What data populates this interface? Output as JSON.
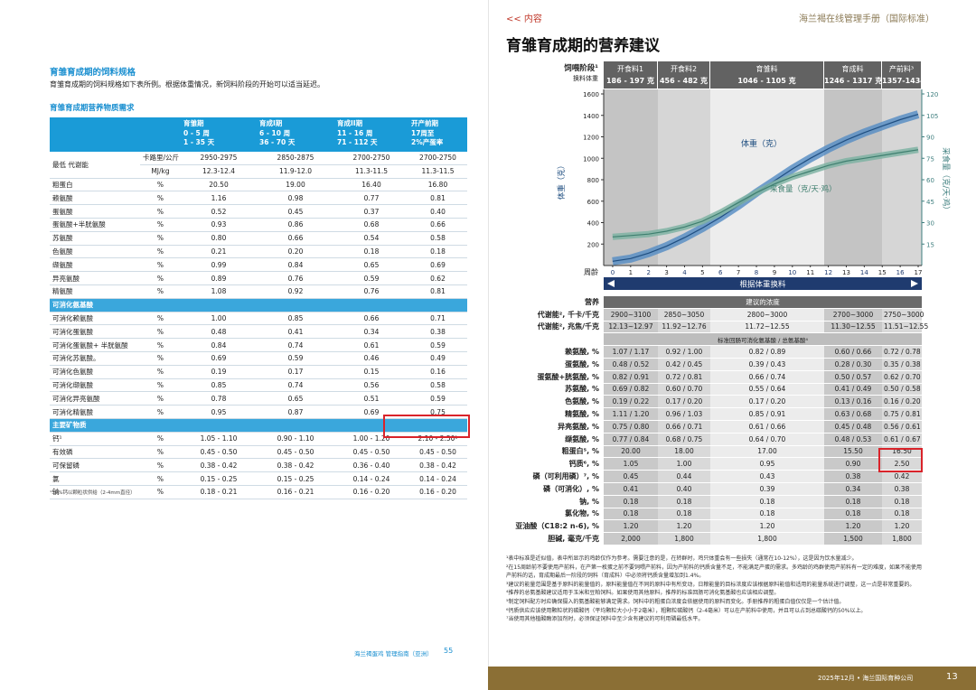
{
  "left": {
    "heading": "育雏育成期的饲料规格",
    "intro": "育雏育成期的饲料规格如下表所例。根据体重情况，新饲料阶段的开始可以适当延迟。",
    "table_title": "育雏育成期营养物质需求",
    "table": {
      "columns": [
        [
          "育雏期",
          "0 - 5 周",
          "1 - 35 天"
        ],
        [
          "育成I期",
          "6 - 10 周",
          "36 - 70 天"
        ],
        [
          "育成II期",
          "11 - 16 周",
          "71 - 112 天"
        ],
        [
          "开产前期",
          "17周至",
          "2%产蛋率"
        ]
      ],
      "rows": [
        {
          "label": "最低 代谢能",
          "lines": [
            [
              "卡路里/公斤",
              "2950-2975",
              "2850-2875",
              "2700-2750",
              "2700-2750"
            ],
            [
              "MJ/kg",
              "12.3-12.4",
              "11.9-12.0",
              "11.3-11.5",
              "11.3-11.5"
            ]
          ]
        },
        [
          "粗蛋白",
          "%",
          "20.50",
          "19.00",
          "16.40",
          "16.80"
        ],
        [
          "赖氨酸",
          "%",
          "1.16",
          "0.98",
          "0.77",
          "0.81"
        ],
        [
          "蛋氨酸",
          "%",
          "0.52",
          "0.45",
          "0.37",
          "0.40"
        ],
        [
          "蛋氨酸+半胱氨酸",
          "%",
          "0.93",
          "0.86",
          "0.68",
          "0.66"
        ],
        [
          "苏氨酸",
          "%",
          "0.80",
          "0.66",
          "0.54",
          "0.58"
        ],
        [
          "色氨酸",
          "%",
          "0.21",
          "0.20",
          "0.18",
          "0.18"
        ],
        [
          "缬氨酸",
          "%",
          "0.99",
          "0.84",
          "0.65",
          "0.69"
        ],
        [
          "异亮氨酸",
          "%",
          "0.89",
          "0.76",
          "0.59",
          "0.62"
        ],
        [
          "精氨酸",
          "%",
          "1.08",
          "0.92",
          "0.76",
          "0.81"
        ],
        {
          "section": "可消化氨基酸"
        },
        [
          "可消化赖氨酸",
          "%",
          "1.00",
          "0.85",
          "0.66",
          "0.71"
        ],
        [
          "可消化蛋氨酸",
          "%",
          "0.48",
          "0.41",
          "0.34",
          "0.38"
        ],
        [
          "可消化蛋氨酸+ 半胱氨酸",
          "%",
          "0.84",
          "0.74",
          "0.61",
          "0.59"
        ],
        [
          "可消化苏氨酸。",
          "%",
          "0.69",
          "0.59",
          "0.46",
          "0.49"
        ],
        [
          "可消化色氨酸",
          "%",
          "0.19",
          "0.17",
          "0.15",
          "0.16"
        ],
        [
          "可消化缬氨酸",
          "%",
          "0.85",
          "0.74",
          "0.56",
          "0.58"
        ],
        [
          "可消化异亮氨酸",
          "%",
          "0.78",
          "0.65",
          "0.51",
          "0.59"
        ],
        [
          "可消化精氨酸",
          "%",
          "0.95",
          "0.87",
          "0.69",
          "0.75"
        ],
        {
          "section": "主要矿物质"
        },
        [
          "钙¹",
          "%",
          "1.05 - 1.10",
          "0.90 - 1.10",
          "1.00 - 1.20",
          "2.10 - 2.50¹"
        ],
        [
          "有效磷",
          "%",
          "0.45 - 0.50",
          "0.45 - 0.50",
          "0.45 - 0.50",
          "0.45 - 0.50"
        ],
        [
          "可保留磷",
          "%",
          "0.38 - 0.42",
          "0.38 - 0.42",
          "0.36 - 0.40",
          "0.38 - 0.42"
        ],
        [
          "氯",
          "%",
          "0.15 - 0.25",
          "0.15 - 0.25",
          "0.14 - 0.24",
          "0.14 - 0.24"
        ],
        [
          "钠",
          "%",
          "0.18 - 0.21",
          "0.16 - 0.21",
          "0.16 - 0.20",
          "0.16 - 0.20"
        ]
      ]
    },
    "footnote": "¹50%钙以颗粒状供给（2-4mm直径）",
    "footer": {
      "text": "海兰褐蛋鸡 管理指南（亚洲）",
      "page": "55"
    }
  },
  "right": {
    "nav": "<< 内容",
    "running_head": "海兰褐在线管理手册（国际标准）",
    "title": "育雏育成期的营养建议",
    "stage_label": "饲喂阶段¹",
    "change_label": "换料体重",
    "stages": [
      {
        "name": "开食料1",
        "weight": "186 - 197 克"
      },
      {
        "name": "开食料2",
        "weight": "456 - 482 克"
      },
      {
        "name": "育雏料",
        "weight": "1046 - 1105 克"
      },
      {
        "name": "育成料",
        "weight": "1246 - 1317 克"
      },
      {
        "name": "产前料³",
        "weight": "1357-1434 克"
      }
    ],
    "chart": {
      "type": "line",
      "xlabel": "周龄",
      "banner": "根据体重换料",
      "ylabel": "体重（克）",
      "y2label": "采食量（克/天·鸡）",
      "x": [
        0,
        1,
        2,
        3,
        4,
        5,
        6,
        7,
        8,
        9,
        10,
        11,
        12,
        13,
        14,
        15,
        16,
        17
      ],
      "xlim": [
        -0.5,
        17.2
      ],
      "xticks": [
        0,
        1,
        2,
        3,
        4,
        5,
        6,
        7,
        8,
        9,
        10,
        11,
        12,
        13,
        14,
        15,
        16,
        17
      ],
      "ylim": [
        0,
        1600
      ],
      "yticks": [
        200,
        400,
        600,
        800,
        1000,
        1200,
        1400,
        1600
      ],
      "y2lim": [
        0,
        120
      ],
      "y2ticks": [
        15,
        30,
        45,
        60,
        75,
        90,
        105,
        120
      ],
      "series": [
        {
          "name": "体重（克）",
          "color": "#1f4e80",
          "values": [
            40,
            65,
            115,
            180,
            260,
            350,
            450,
            560,
            680,
            790,
            900,
            1000,
            1090,
            1170,
            1240,
            1300,
            1360,
            1410
          ]
        },
        {
          "name": "采食量（克/天·鸡）",
          "color": "#3f7f6f",
          "axis": "y2",
          "values": [
            20,
            21,
            22,
            24,
            27,
            31,
            37,
            44,
            51,
            57,
            62,
            66,
            70,
            73,
            75,
            77,
            79,
            81
          ]
        }
      ]
    },
    "table": {
      "header": [
        "营养",
        "建议的浓度"
      ],
      "rows": [
        [
          "代谢能², 千卡/千克",
          "2900~3100",
          "2850~3050",
          "2800~3000",
          "2700~3000",
          "2750~3000"
        ],
        [
          "代谢能², 兆焦/千克",
          "12.13~12.97",
          "11.92~12.76",
          "11.72~12.55",
          "11.30~12.55",
          "11.51~12.55"
        ],
        {
          "section": "标准回肠可消化氨基酸 / 总氨基酸⁴"
        },
        [
          "赖氨酸, %",
          "1.07 / 1.17",
          "0.92 / 1.00",
          "0.82 / 0.89",
          "0.60 / 0.66",
          "0.72 / 0.78"
        ],
        [
          "蛋氨酸, %",
          "0.48 / 0.52",
          "0.42 / 0.45",
          "0.39 / 0.43",
          "0.28 / 0.30",
          "0.35 / 0.38"
        ],
        [
          "蛋氨酸+胱氨酸, %",
          "0.82 / 0.91",
          "0.72 / 0.81",
          "0.66 / 0.74",
          "0.50 / 0.57",
          "0.62 / 0.70"
        ],
        [
          "苏氨酸, %",
          "0.69 / 0.82",
          "0.60 / 0.70",
          "0.55 / 0.64",
          "0.41 / 0.49",
          "0.50 / 0.58"
        ],
        [
          "色氨酸, %",
          "0.19 / 0.22",
          "0.17 / 0.20",
          "0.17 / 0.20",
          "0.13 / 0.16",
          "0.16 / 0.20"
        ],
        [
          "精氨酸, %",
          "1.11 / 1.20",
          "0.96 / 1.03",
          "0.85 / 0.91",
          "0.63 / 0.68",
          "0.75 / 0.81"
        ],
        [
          "异亮氨酸, %",
          "0.75 / 0.80",
          "0.66 / 0.71",
          "0.61 / 0.66",
          "0.45 / 0.48",
          "0.56 / 0.61"
        ],
        [
          "缬氨酸, %",
          "0.77 / 0.84",
          "0.68 / 0.75",
          "0.64 / 0.70",
          "0.48 / 0.53",
          "0.61 / 0.67"
        ],
        [
          "粗蛋白⁵, %",
          "20.00",
          "18.00",
          "17.00",
          "15.50",
          "16.50"
        ],
        [
          "钙质⁶, %",
          "1.05",
          "1.00",
          "0.95",
          "0.90",
          "2.50"
        ],
        [
          "磷（可利用磷）⁷, %",
          "0.45",
          "0.44",
          "0.43",
          "0.38",
          "0.42"
        ],
        [
          "磷（可消化）, %",
          "0.41",
          "0.40",
          "0.39",
          "0.34",
          "0.38"
        ],
        [
          "钠, %",
          "0.18",
          "0.18",
          "0.18",
          "0.18",
          "0.18"
        ],
        [
          "氯化物, %",
          "0.18",
          "0.18",
          "0.18",
          "0.18",
          "0.18"
        ],
        [
          "亚油酸（C18:2 n-6), %",
          "1.20",
          "1.20",
          "1.20",
          "1.20",
          "1.20"
        ],
        [
          "胆碱, 毫克/千克",
          "2,000",
          "1,800",
          "1,800",
          "1,500",
          "1,800"
        ]
      ]
    },
    "footnotes": [
      "¹表中标准是近似值，表中所显示的鸡龄仅作为参考。需要注意的是，在转群时，鸡只体重会有一些损失（通常在10-12%），这是因为饮水量减少。",
      "²在15周龄前不要使用产前料，在产第一枚蛋之前不要饲喂产前料，因为产前料的钙质含量不足，不能满足产蛋的需求。多鸡龄的鸡群使用产前料有一定的难度，如果不能使用产前料的话，育成期最后一阶段的饲料（育成料）中必须将钙质含量增加到1.4%。",
      "³建议的能量范围是基于原料的能量值的，原料能量值在不同的原料中有所变动，日粮能量的目标浓度应该根据原料能值和适用的能量系统进行调整，这一点是非常重要的。",
      "⁴推荐的总氨基酸建议适用于玉米和豆粕饲料。如果使用其他原料，推荐的标准回肠可消化氨基酸也应该相应调整。",
      "⁵制定饲料配方时应确保摄入的氨基酸能够满足需求。饲料中的粗蛋白浓度会依据使用的原料而变化。手册推荐的粗蛋白值仅仅是一个估计值。",
      "⁶钙质供应应该使用颗粒状的碳酸钙（平均颗粒大小小于2毫米），粗颗粒碳酸钙（2-4毫米）可以在产前料中使用，并且可以占到总碳酸钙的50%以上。",
      "⁷当使用其他植酸酶添加剂时，必须保证饲料中至少含有建议的可利用磷最低水平。"
    ],
    "footer": {
      "text": "2025年12月 • 海兰国际育种公司",
      "page": "13"
    }
  }
}
